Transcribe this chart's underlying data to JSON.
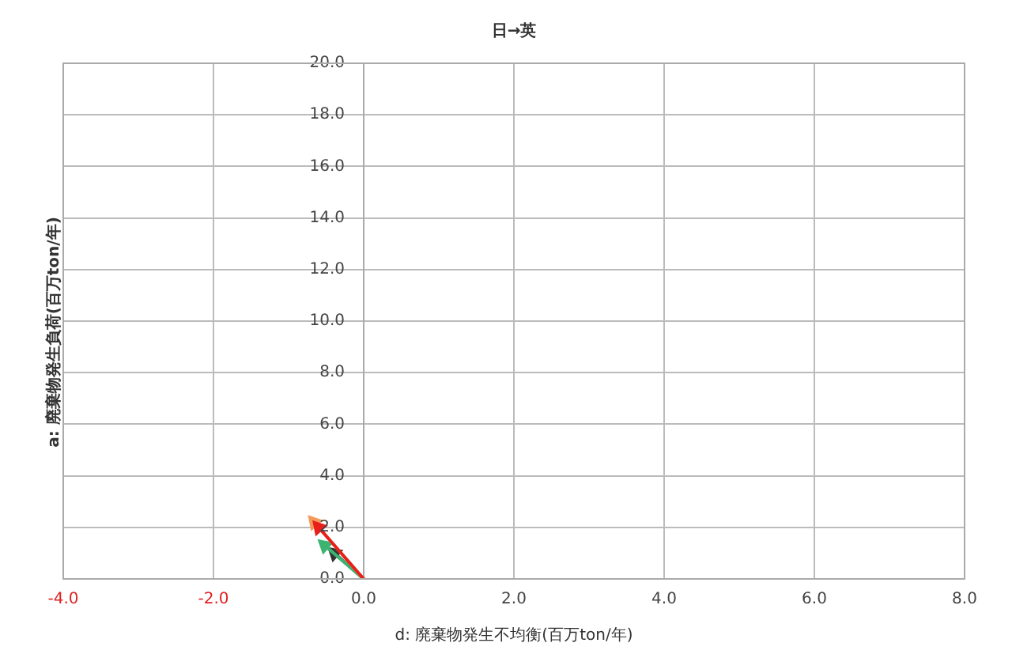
{
  "chart_data": {
    "type": "line",
    "title": "日→英",
    "xlabel": "d: 廃棄物発生不均衡(百万ton/年)",
    "ylabel": "a: 廃棄物発生負荷(百万ton/年)",
    "x": [
      0,
      -0.6
    ],
    "series": [
      {
        "color": "#e8201c",
        "values": [
          0,
          2.0
        ]
      },
      {
        "color": "#f59a5a",
        "x": [
          0,
          -0.66
        ],
        "values": [
          0,
          2.2
        ]
      },
      {
        "color": "#3cb371",
        "x": [
          0,
          -0.52
        ],
        "values": [
          0,
          1.3
        ]
      },
      {
        "color": "#333333",
        "x": [
          0,
          -0.39
        ],
        "values": [
          0,
          1.0
        ]
      }
    ],
    "xlim": [
      -4,
      8
    ],
    "xticks": [
      {
        "value": -4,
        "label": "-4.0"
      },
      {
        "value": -2,
        "label": "-2.0"
      },
      {
        "value": 0,
        "label": "0.0"
      },
      {
        "value": 2,
        "label": "2.0"
      },
      {
        "value": 4,
        "label": "4.0"
      },
      {
        "value": 6,
        "label": "6.0"
      },
      {
        "value": 8,
        "label": "8.0"
      }
    ],
    "ylim": [
      0,
      20
    ],
    "yticks": [
      {
        "value": 0,
        "label": "0.0"
      },
      {
        "value": 2,
        "label": "2.0"
      },
      {
        "value": 4,
        "label": "4.0"
      },
      {
        "value": 6,
        "label": "6.0"
      },
      {
        "value": 8,
        "label": "8.0"
      },
      {
        "value": 10,
        "label": "10.0"
      },
      {
        "value": 12,
        "label": "12.0"
      },
      {
        "value": 14,
        "label": "14.0"
      },
      {
        "value": 16,
        "label": "16.0"
      },
      {
        "value": 18,
        "label": "18.0"
      },
      {
        "value": 20,
        "label": "20.0"
      }
    ],
    "grid": true,
    "legend": false,
    "marker": "triangle",
    "line_style": "solid"
  }
}
